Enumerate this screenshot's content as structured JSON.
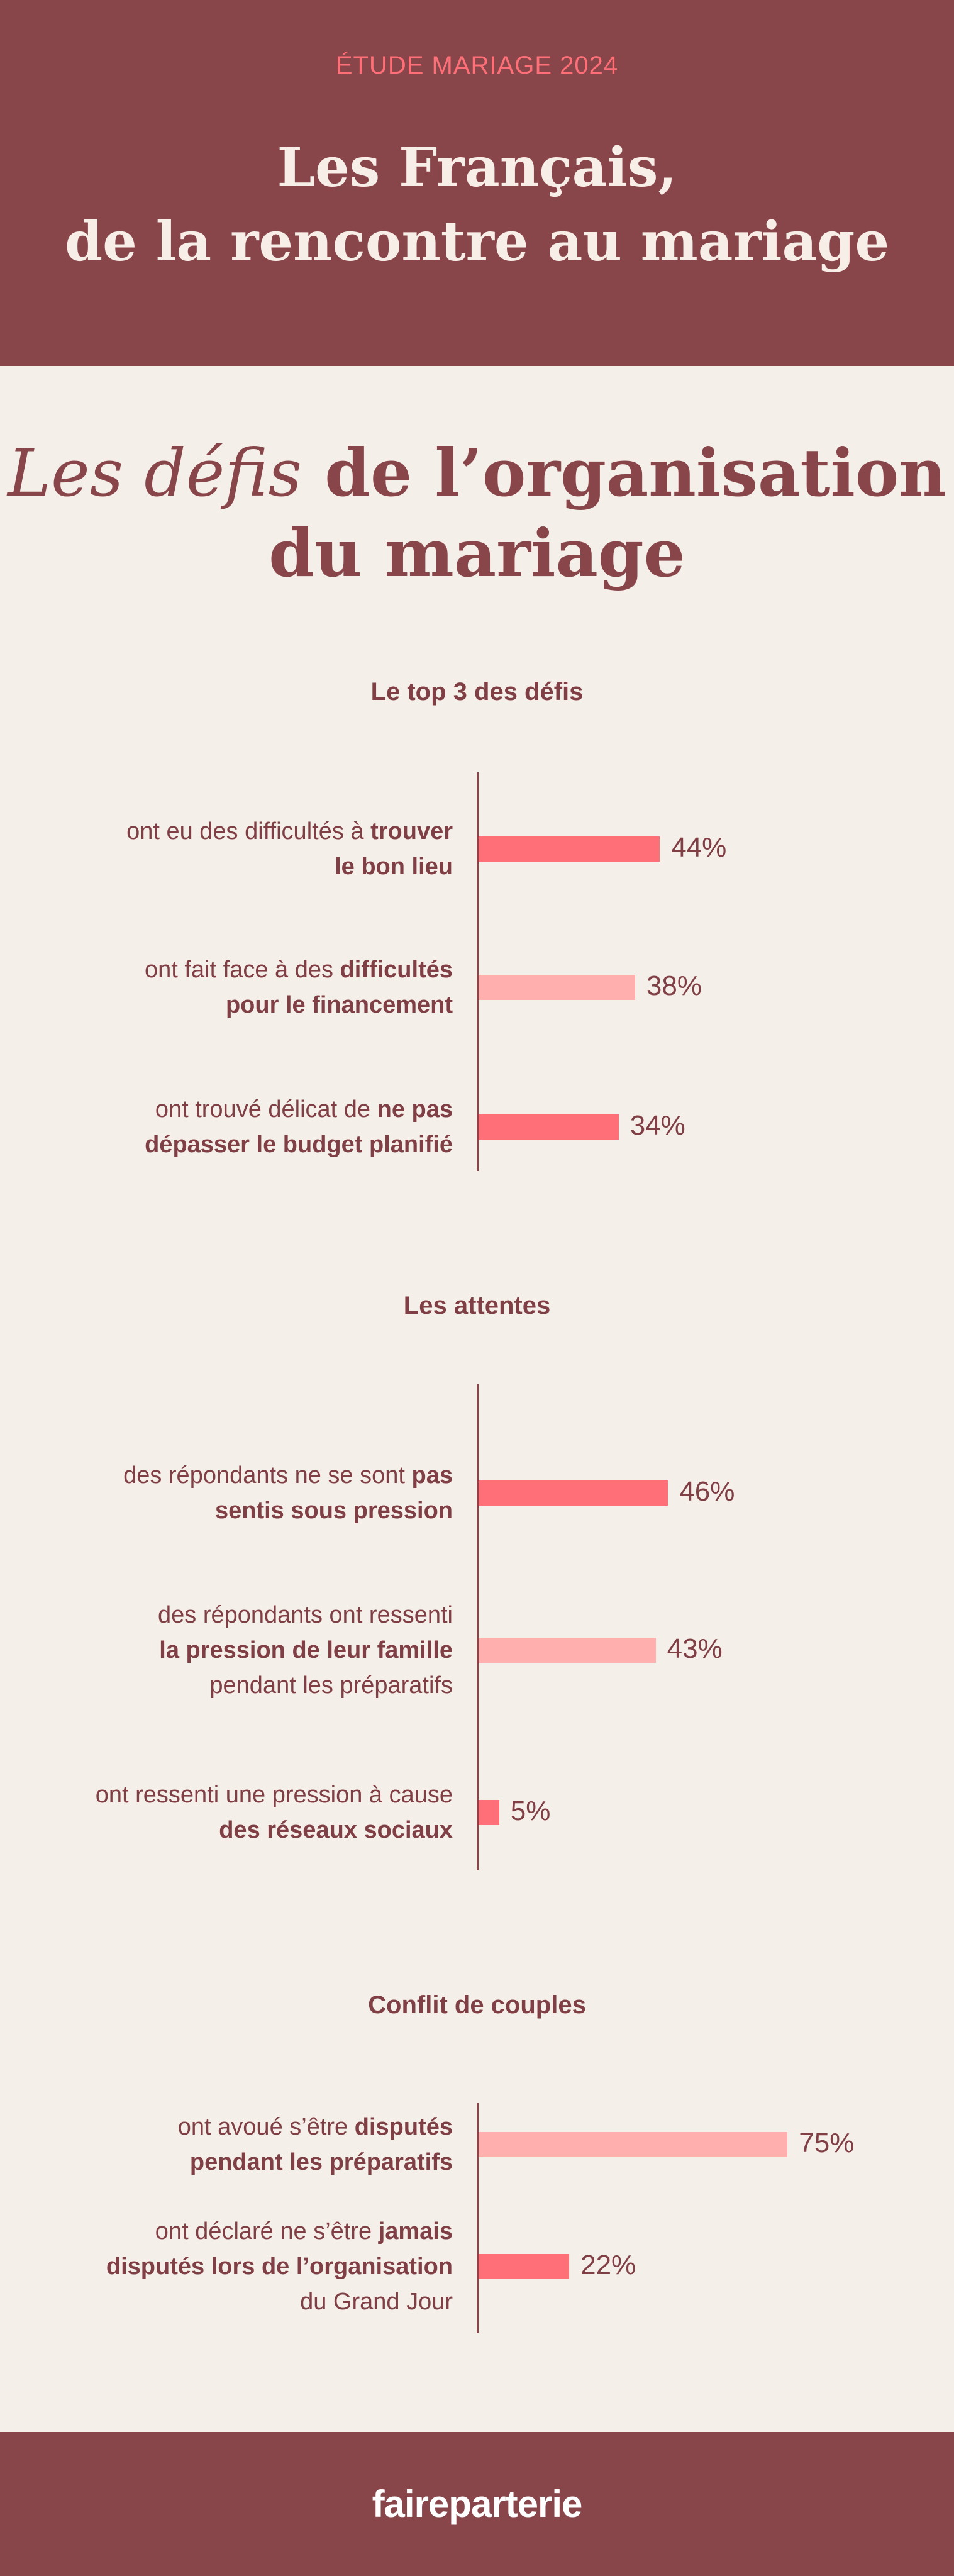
{
  "header": {
    "eyebrow": "ÉTUDE MARIAGE 2024",
    "title_line1": "Les Français,",
    "title_line2": "de la rencontre au mariage"
  },
  "section": {
    "title_italic": "Les défis",
    "title_rest": " de l’organisation",
    "title_line2": "du mariage"
  },
  "colors": {
    "bar_strong": "#ff6f77",
    "bar_light": "#ffb0ae",
    "brand": "#88464a",
    "background": "#f5efe9"
  },
  "chart_data": [
    {
      "type": "bar",
      "orientation": "horizontal",
      "title": "Le top 3 des défis",
      "categories": [
        [
          "ont eu des difficultés à ",
          "trouver",
          "le bon lieu",
          ""
        ],
        [
          "ont fait face à des ",
          "difficultés",
          "pour le financement",
          ""
        ],
        [
          "ont trouvé délicat de ",
          "ne pas",
          "dépasser le budget planifié",
          ""
        ]
      ],
      "values": [
        44,
        38,
        34
      ],
      "value_labels": [
        "44%",
        "38%",
        "34%"
      ],
      "shades": [
        "strong",
        "light",
        "strong"
      ],
      "unit": "%"
    },
    {
      "type": "bar",
      "orientation": "horizontal",
      "title": "Les attentes",
      "categories": [
        [
          "des répondants ne se sont ",
          "pas",
          "sentis sous pression",
          ""
        ],
        [
          "des répondants ont ressenti",
          "",
          "la pression de leur famille",
          "pendant les préparatifs"
        ],
        [
          "ont ressenti une pression à cause",
          "",
          "des réseaux sociaux",
          ""
        ]
      ],
      "values": [
        46,
        43,
        5
      ],
      "value_labels": [
        "46%",
        "43%",
        "5%"
      ],
      "shades": [
        "strong",
        "light",
        "strong"
      ],
      "unit": "%"
    },
    {
      "type": "bar",
      "orientation": "horizontal",
      "title": "Conflit de couples",
      "categories": [
        [
          "ont avoué s’être ",
          "disputés",
          "pendant les préparatifs",
          ""
        ],
        [
          "ont déclaré ne s’être ",
          "jamais",
          "disputés lors de l’organisation",
          "du Grand Jour"
        ]
      ],
      "values": [
        75,
        22
      ],
      "value_labels": [
        "75%",
        "22%"
      ],
      "shades": [
        "light",
        "strong"
      ],
      "unit": "%"
    }
  ],
  "footer": {
    "brand": "faireparterie"
  }
}
